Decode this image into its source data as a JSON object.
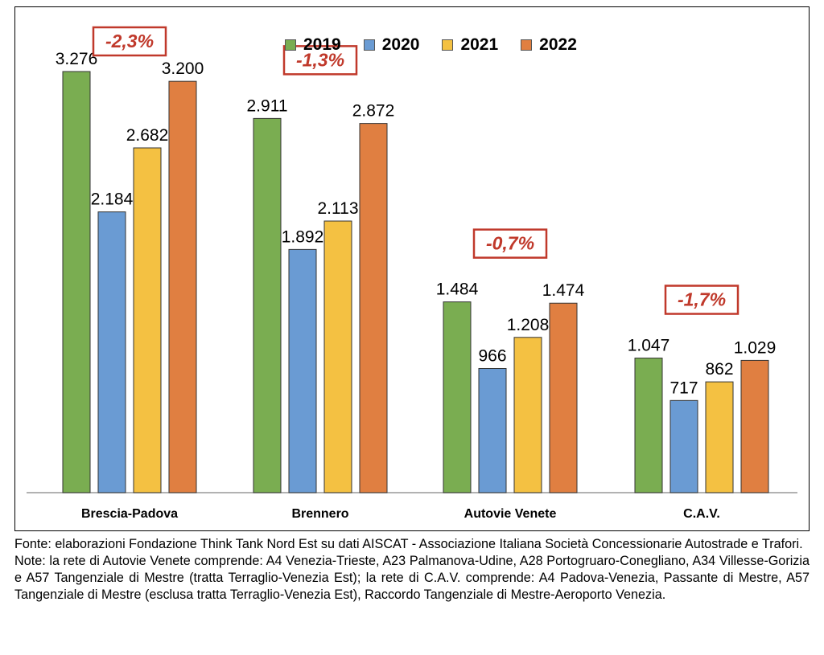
{
  "chart_data": {
    "type": "bar",
    "categories": [
      "Brescia-Padova",
      "Brennero",
      "Autovie Venete",
      "C.A.V."
    ],
    "series": [
      {
        "name": "2019",
        "color": "#7aad51",
        "values": [
          3276,
          2911,
          1484,
          1047
        ],
        "labels": [
          "3.276",
          "2.911",
          "1.484",
          "1.047"
        ]
      },
      {
        "name": "2020",
        "color": "#6a9bd3",
        "values": [
          2184,
          1892,
          966,
          717
        ],
        "labels": [
          "2.184",
          "1.892",
          "966",
          "717"
        ]
      },
      {
        "name": "2021",
        "color": "#f4c142",
        "values": [
          2682,
          2113,
          1208,
          862
        ],
        "labels": [
          "2.682",
          "2.113",
          "1.208",
          "862"
        ]
      },
      {
        "name": "2022",
        "color": "#e07f41",
        "values": [
          3200,
          2872,
          1474,
          1029
        ],
        "labels": [
          "3.200",
          "2.872",
          "1.474",
          "1.029"
        ]
      }
    ],
    "changes": [
      "-2,3%",
      "-1,3%",
      "-0,7%",
      "-1,7%"
    ],
    "change_color": "#c0392b",
    "ylim": [
      0,
      3276
    ],
    "grid": false,
    "legend_position": "top-center",
    "title": "",
    "xlabel": "",
    "ylabel": ""
  },
  "notes": {
    "source": "Fonte: elaborazioni Fondazione Think Tank Nord Est su dati AISCAT - Associazione Italiana Società Concessionarie Autostrade e Trafori.",
    "note": "Note: la rete di Autovie Venete comprende: A4 Venezia-Trieste, A23 Palmanova-Udine, A28 Portogruaro-Conegliano, A34 Villesse-Gorizia e A57 Tangenziale di Mestre (tratta Terraglio-Venezia Est); la rete di C.A.V. comprende: A4 Padova-Venezia, Passante di Mestre, A57 Tangenziale di Mestre (esclusa tratta Terraglio-Venezia Est), Raccordo Tangenziale di Mestre-Aeroporto Venezia."
  }
}
